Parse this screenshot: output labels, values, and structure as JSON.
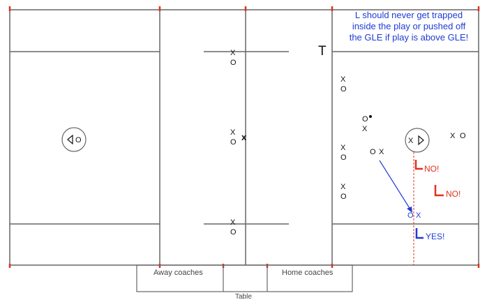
{
  "note_lines": [
    "L should never get trapped",
    "inside the play or pushed off",
    "the GLE if play is above GLE!"
  ],
  "referee_T": "T",
  "referee_L": "L",
  "labels": {
    "no_1": "NO!",
    "no_2": "NO!",
    "yes": "YES!",
    "away_coaches": "Away coaches",
    "home_coaches": "Home coaches",
    "table": "Table"
  },
  "players": {
    "top_center_x": "X",
    "top_center_o": "O",
    "mid_center_x": "X",
    "mid_center_o": "O",
    "bottom_center_x": "X",
    "bottom_center_o": "O",
    "center_official_x": "x",
    "left_circle_o": "O",
    "right_circle_x": "X",
    "right_r1_x": "X",
    "right_r1_o": "O",
    "right_r2_o": "O",
    "right_r2_x": "X",
    "right_r3_x": "X",
    "right_r3_o": "O",
    "right_r3b_o": "O",
    "right_r3b_x": "X",
    "right_r4_x": "X",
    "right_r4_o": "O",
    "far_right_x": "X",
    "far_right_o": "O",
    "blue_o": "O",
    "blue_x": "X"
  },
  "colors": {
    "field_line": "#666666",
    "red": "#e0301e",
    "blue": "#1f3bd6",
    "black": "#111111"
  }
}
